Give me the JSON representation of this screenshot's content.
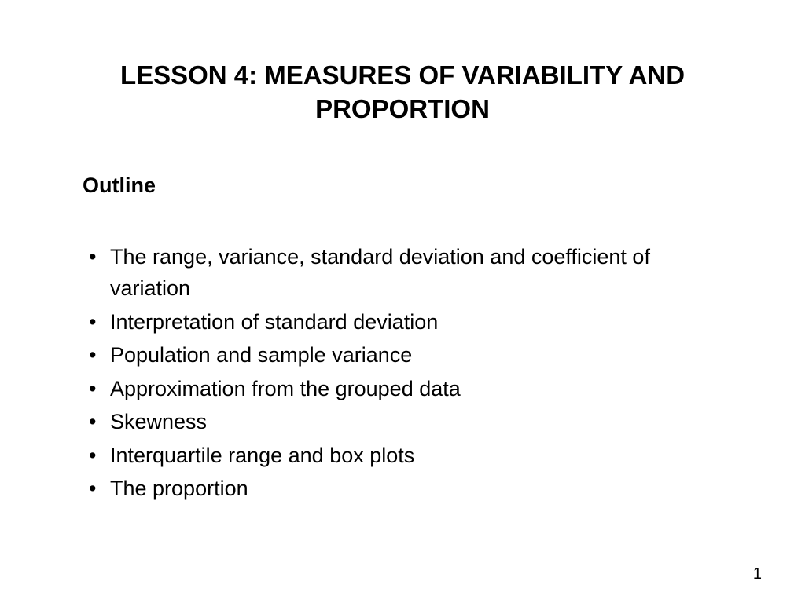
{
  "slide": {
    "title": "LESSON 4: MEASURES OF VARIABILITY AND PROPORTION",
    "outline_heading": "Outline",
    "bullets": [
      "The range, variance, standard deviation and coefficient of variation",
      "Interpretation of standard deviation",
      "Population and sample variance",
      "Approximation from the grouped data",
      "Skewness",
      "Interquartile range and box plots",
      "The proportion"
    ],
    "page_number": "1"
  },
  "style": {
    "background_color": "#ffffff",
    "text_color": "#000000",
    "title_fontsize": 33,
    "heading_fontsize": 27,
    "body_fontsize": 27,
    "pagenum_fontsize": 20,
    "font_family": "Arial, Helvetica, sans-serif"
  }
}
